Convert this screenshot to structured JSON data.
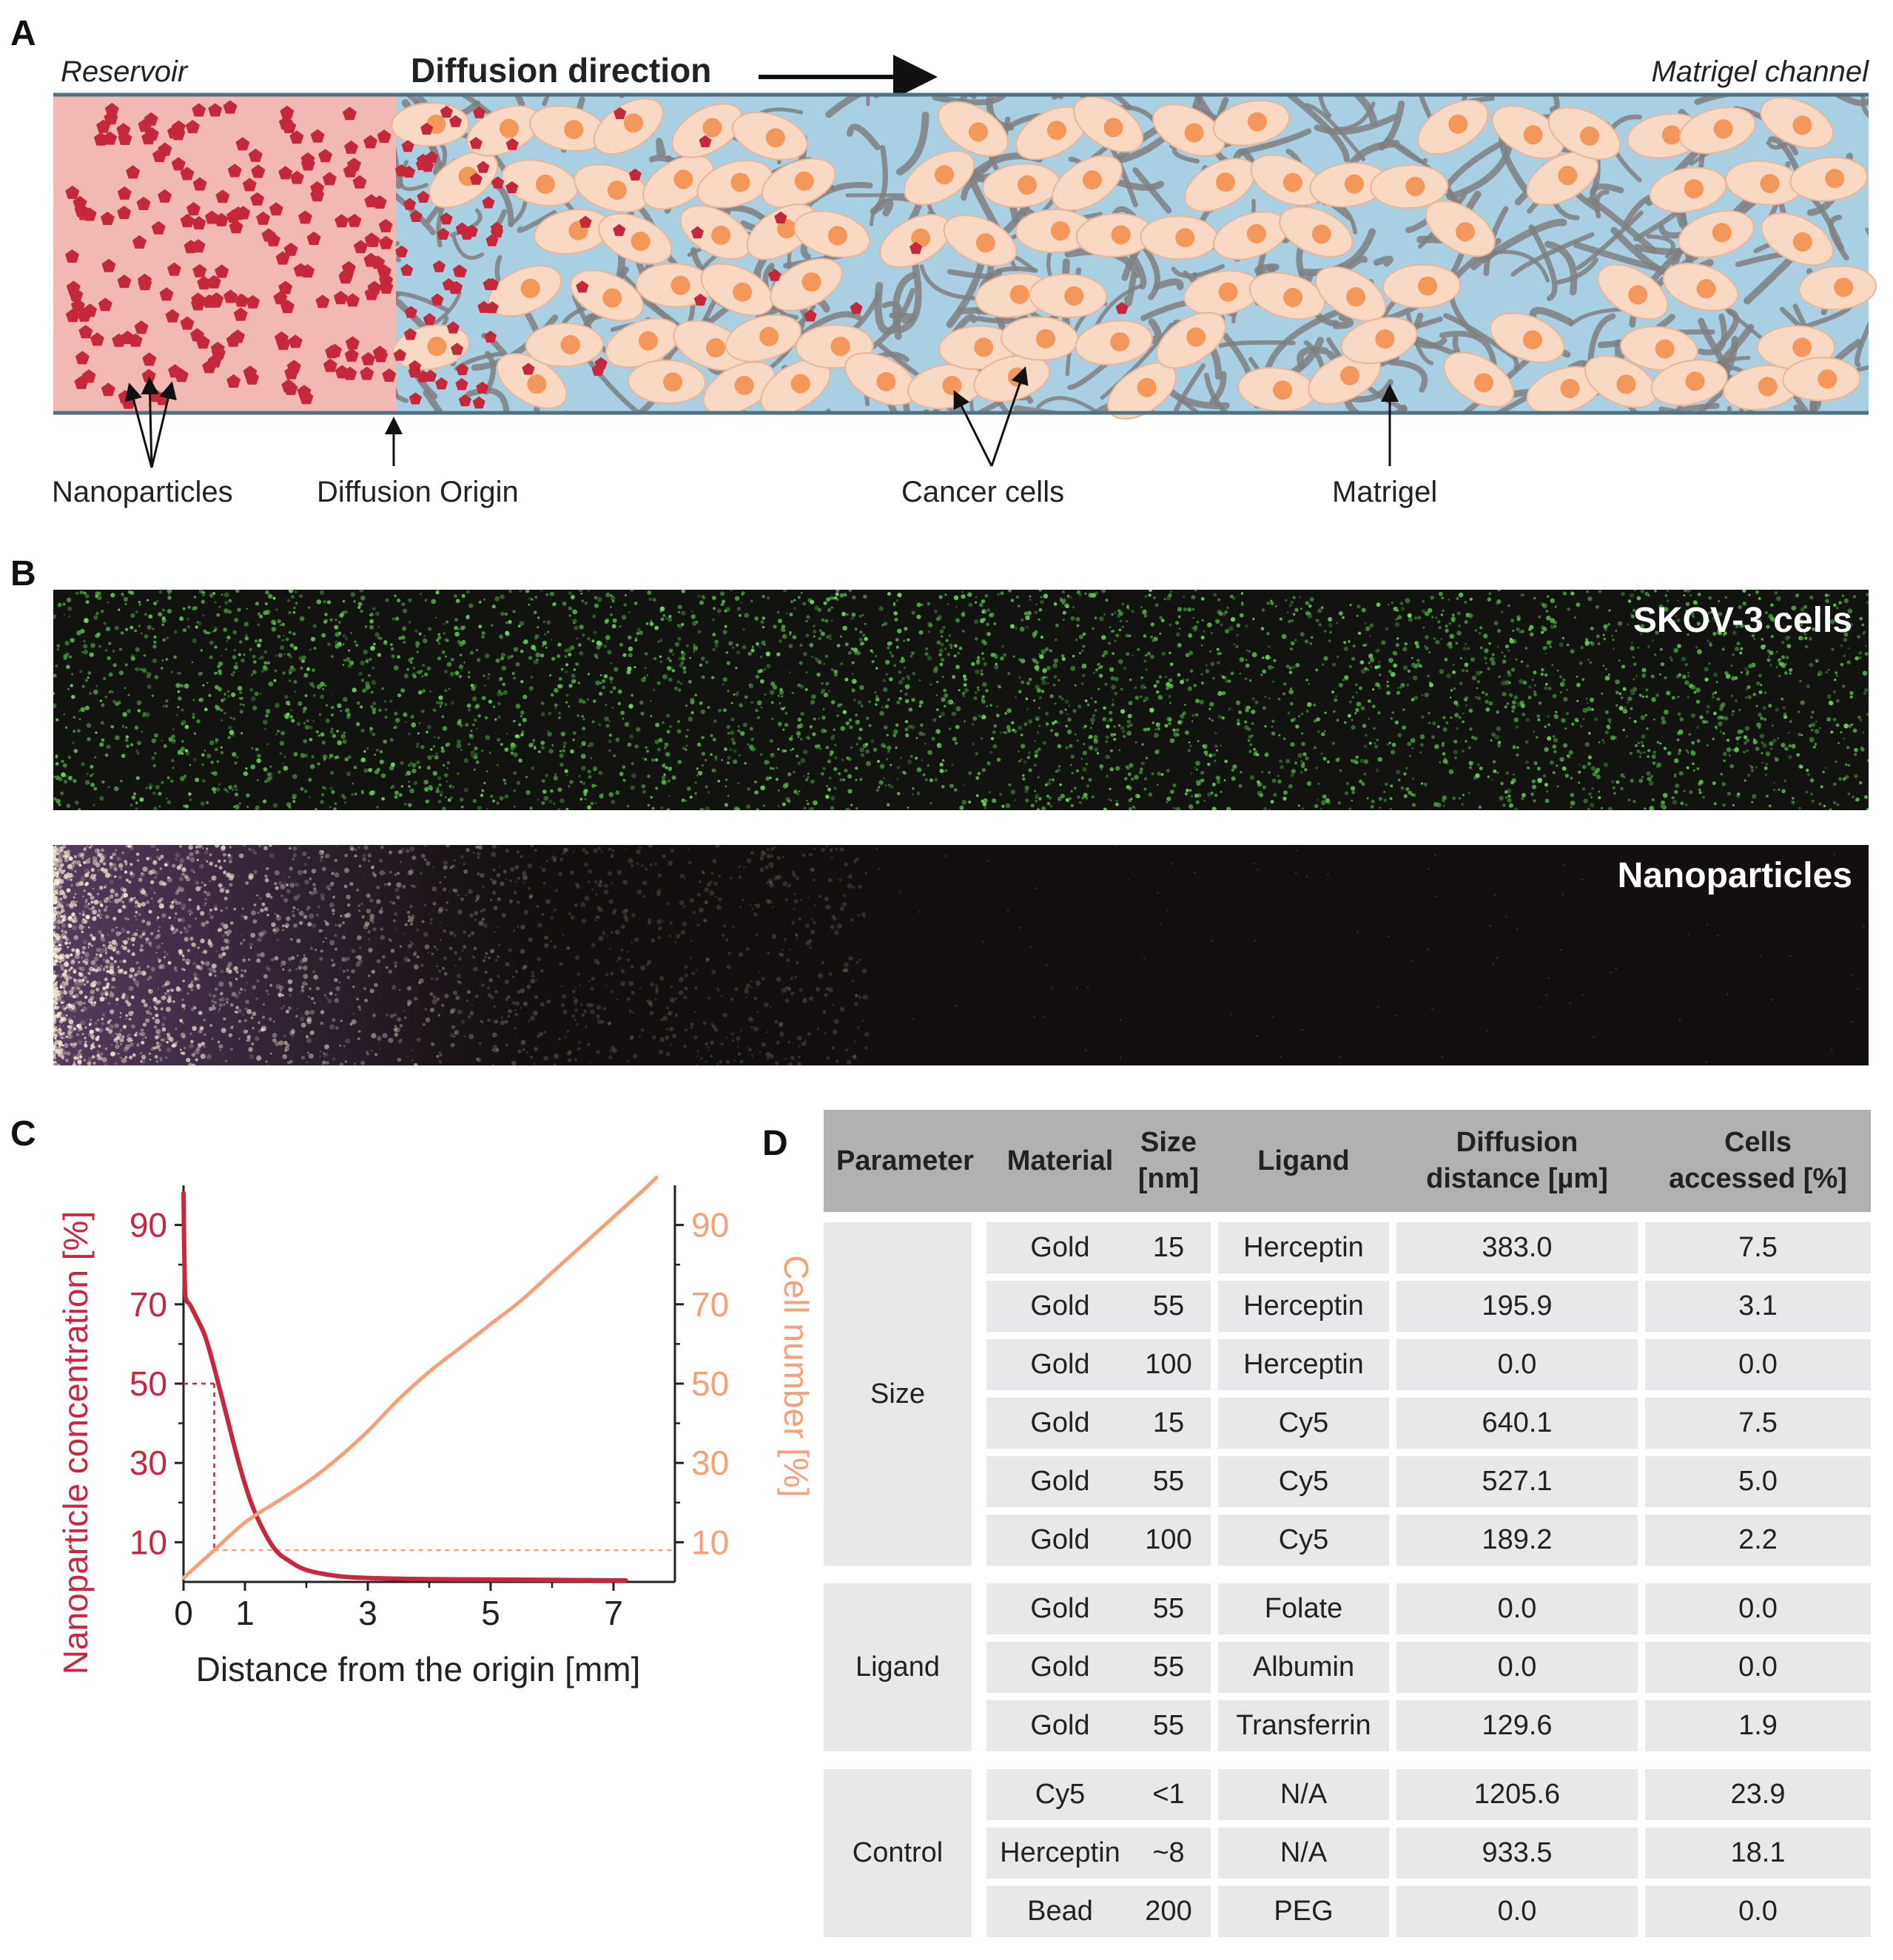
{
  "panels": {
    "a": "A",
    "b": "B",
    "c": "C",
    "d": "D"
  },
  "panel_a": {
    "reservoir_label": "Reservoir",
    "diffusion_direction": "Diffusion direction",
    "matrigel_channel_label": "Matrigel channel",
    "annotations": {
      "nanoparticles": "Nanoparticles",
      "diffusion_origin": "Diffusion Origin",
      "cancer_cells": "Cancer cells",
      "matrigel": "Matrigel"
    },
    "colors": {
      "reservoir": "#f2b8b3",
      "channel": "#a9cfe2",
      "nanoparticle": "#c6283b",
      "cell_body": "#f9d9c4",
      "cell_nucleus": "#f4975a",
      "matrigel_fibers": "#7f7f7f"
    }
  },
  "panel_b": {
    "top_image_label": "SKOV-3 cells",
    "bottom_image_label": "Nanoparticles"
  },
  "chart_data": {
    "type": "line",
    "xlabel": "Distance from the origin [mm]",
    "ylabel_left": "Nanoparticle concentration [%]",
    "ylabel_right": "Cell number [%]",
    "x_ticks": [
      "0",
      "1",
      "3",
      "5",
      "7"
    ],
    "y_ticks_left": [
      "90",
      "70",
      "50",
      "30",
      "10"
    ],
    "y_ticks_right": [
      "90",
      "70",
      "50",
      "30",
      "10"
    ],
    "xlim": [
      0,
      8
    ],
    "ylim": [
      0,
      100
    ],
    "series": [
      {
        "color": "#c8283f",
        "axis": "left",
        "x": [
          0.0,
          0.02,
          0.05,
          0.1,
          0.2,
          0.35,
          0.5,
          0.7,
          0.9,
          1.1,
          1.3,
          1.5,
          1.7,
          2.0,
          2.5,
          3.0,
          4.0,
          5.0,
          6.0,
          7.0,
          7.2
        ],
        "y": [
          98,
          75,
          71,
          70,
          67,
          62,
          54,
          42,
          30,
          20,
          13,
          8,
          5.5,
          3,
          1.5,
          1,
          0.7,
          0.6,
          0.5,
          0.4,
          0.4
        ]
      },
      {
        "color": "#f4a07a",
        "axis": "right",
        "x": [
          0.0,
          0.5,
          1.0,
          1.5,
          2.0,
          2.5,
          3.0,
          3.5,
          4.0,
          4.5,
          5.0,
          5.5,
          6.0,
          6.5,
          7.0,
          7.5,
          7.7
        ],
        "y": [
          1,
          8,
          15,
          20,
          25,
          31,
          38,
          46,
          53,
          59,
          65,
          71,
          78,
          85,
          92,
          99,
          102
        ]
      }
    ],
    "reference_lines": [
      {
        "color": "#c8283f",
        "from": [
          0,
          50
        ],
        "to": [
          0.5,
          50
        ]
      },
      {
        "color": "#c8283f",
        "from": [
          0.5,
          50
        ],
        "to": [
          0.5,
          8
        ]
      },
      {
        "color": "#f4a07a",
        "from": [
          0.5,
          8
        ],
        "to": [
          8,
          8
        ]
      }
    ],
    "colors": {
      "left_axis": "#c8283f",
      "right_axis": "#f4a07a",
      "axes": "#222222"
    }
  },
  "table": {
    "headers": [
      {
        "line1": "Parameter",
        "line2": ""
      },
      {
        "line1": "Material",
        "line2": ""
      },
      {
        "line1": "Size",
        "line2": "[nm]"
      },
      {
        "line1": "Ligand",
        "line2": ""
      },
      {
        "line1": "Diffusion",
        "line2": "distance [µm]"
      },
      {
        "line1": "Cells",
        "line2": "accessed [%]"
      }
    ],
    "groups": [
      {
        "name": "Size",
        "rows": [
          [
            "Gold",
            "15",
            "Herceptin",
            "383.0",
            "7.5"
          ],
          [
            "Gold",
            "55",
            "Herceptin",
            "195.9",
            "3.1"
          ],
          [
            "Gold",
            "100",
            "Herceptin",
            "0.0",
            "0.0"
          ],
          [
            "Gold",
            "15",
            "Cy5",
            "640.1",
            "7.5"
          ],
          [
            "Gold",
            "55",
            "Cy5",
            "527.1",
            "5.0"
          ],
          [
            "Gold",
            "100",
            "Cy5",
            "189.2",
            "2.2"
          ]
        ]
      },
      {
        "name": "Ligand",
        "rows": [
          [
            "Gold",
            "55",
            "Folate",
            "0.0",
            "0.0"
          ],
          [
            "Gold",
            "55",
            "Albumin",
            "0.0",
            "0.0"
          ],
          [
            "Gold",
            "55",
            "Transferrin",
            "129.6",
            "1.9"
          ]
        ]
      },
      {
        "name": "Control",
        "rows": [
          [
            "Cy5",
            "<1",
            "N/A",
            "1205.6",
            "23.9"
          ],
          [
            "Herceptin",
            "~8",
            "N/A",
            "933.5",
            "18.1"
          ],
          [
            "Bead",
            "200",
            "PEG",
            "0.0",
            "0.0"
          ]
        ]
      }
    ],
    "colors": {
      "header_bg": "#b1b1b3",
      "cell_bg": "#e8e8ea"
    }
  }
}
